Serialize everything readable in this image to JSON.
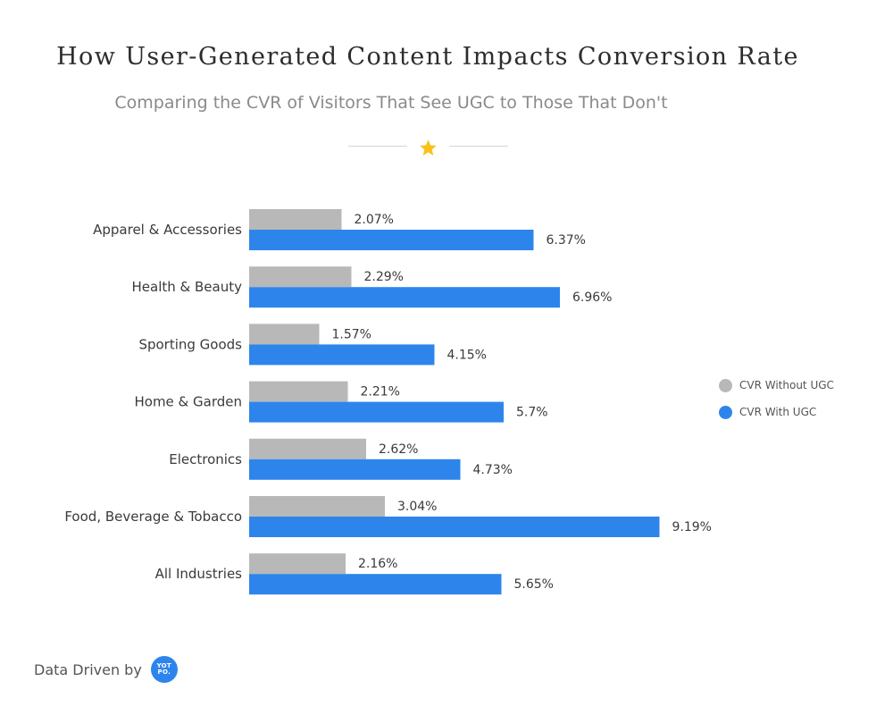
{
  "header": {
    "title": "How User-Generated Content Impacts Conversion Rate",
    "subtitle": "Comparing the CVR of Visitors That See UGC to Those That Don't"
  },
  "colors": {
    "without_ugc": "#b8b8b8",
    "with_ugc": "#2d85ec",
    "star": "#f7c21a"
  },
  "chart_data": {
    "type": "bar",
    "orientation": "horizontal",
    "categories": [
      "Apparel & Accessories",
      "Health & Beauty",
      "Sporting Goods",
      "Home & Garden",
      "Electronics",
      "Food, Beverage & Tobacco",
      "All Industries"
    ],
    "series": [
      {
        "name": "CVR Without UGC",
        "values": [
          2.07,
          2.29,
          1.57,
          2.21,
          2.62,
          3.04,
          2.16
        ],
        "labels": [
          "2.07%",
          "2.29%",
          "1.57%",
          "2.21%",
          "2.62%",
          "3.04%",
          "2.16%"
        ]
      },
      {
        "name": "CVR With UGC",
        "values": [
          6.37,
          6.96,
          4.15,
          5.7,
          4.73,
          9.19,
          5.65
        ],
        "labels": [
          "6.37%",
          "6.96%",
          "4.15%",
          "5.7%",
          "4.73%",
          "9.19%",
          "5.65%"
        ]
      }
    ],
    "title": "How User-Generated Content Impacts Conversion Rate",
    "subtitle": "Comparing the CVR of Visitors That See UGC to Those That Don't",
    "xlabel": "",
    "ylabel": "",
    "xlim": [
      0,
      10
    ],
    "grid": false,
    "legend_position": "right"
  },
  "legend": {
    "items": [
      {
        "label": "CVR Without UGC"
      },
      {
        "label": "CVR With UGC"
      }
    ]
  },
  "footer": {
    "text": "Data Driven by",
    "logo_line1": "YOT",
    "logo_line2": "PO."
  }
}
